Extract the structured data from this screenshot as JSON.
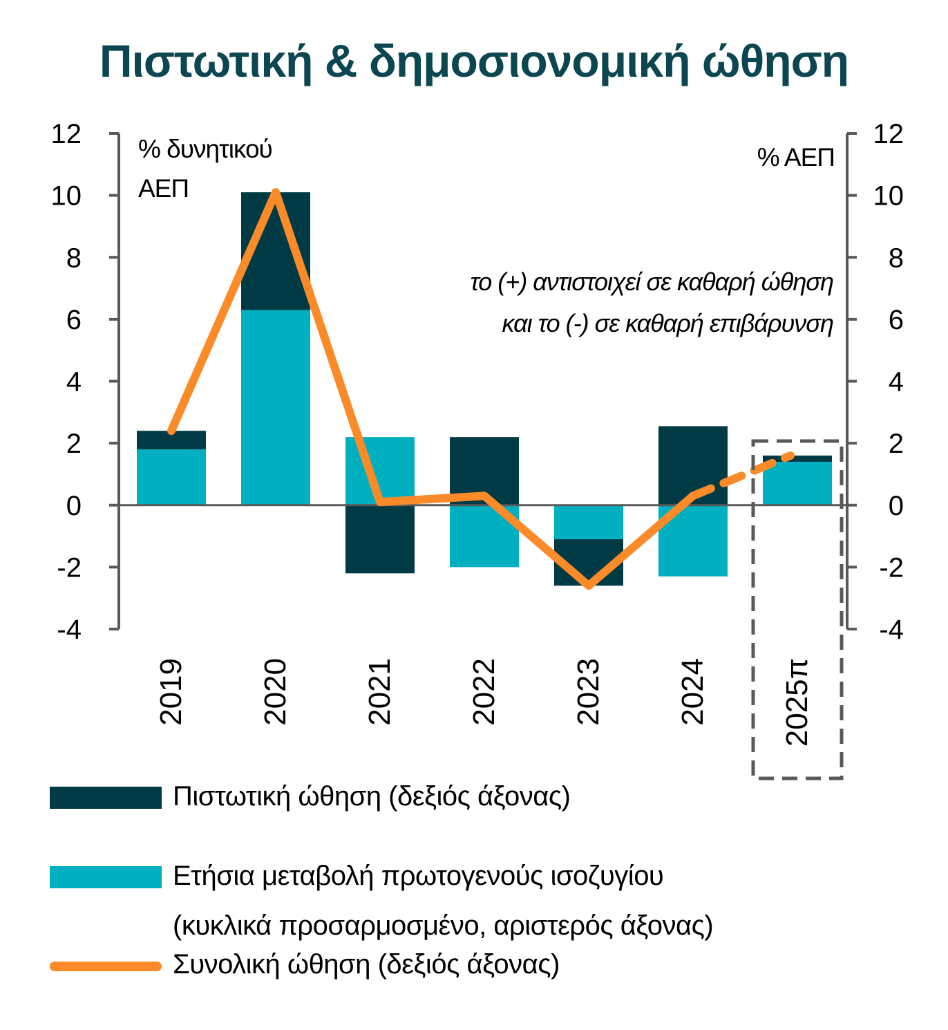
{
  "title": "Πιστωτική & δημοσιονομική ώθηση",
  "colors": {
    "title": "#0c4650",
    "credit": "#003a45",
    "fiscal": "#00afc0",
    "total": "#fb8a28",
    "axis": "#595959",
    "zero_line": "#595959",
    "forecast_box": "#595959"
  },
  "chart_data": {
    "type": "bar",
    "stacked": true,
    "categories": [
      "2019",
      "2020",
      "2021",
      "2022",
      "2023",
      "2024",
      "2025π"
    ],
    "forecast_category": "2025π",
    "series": [
      {
        "name": "Πιστωτική ώθηση (δεξιός άξονας)",
        "kind": "bar",
        "axis": "right",
        "values": [
          0.6,
          3.8,
          -2.2,
          2.2,
          -1.5,
          2.55,
          0.2
        ]
      },
      {
        "name": "Ετήσια μεταβολή πρωτογενούς ισοζυγίου (κυκλικά προσαρμοσμένο, αριστερός άξονας)",
        "kind": "bar",
        "axis": "left",
        "values": [
          1.8,
          6.3,
          2.2,
          -2.0,
          -1.1,
          -2.3,
          1.4
        ]
      },
      {
        "name": "Συνολική ώθηση (δεξιός άξονας)",
        "kind": "line",
        "axis": "right",
        "values": [
          2.4,
          10.1,
          0.1,
          0.3,
          -2.6,
          0.3,
          1.6
        ]
      }
    ],
    "left_axis": {
      "label": "% δυνητικού ΑΕΠ",
      "ylim": [
        -4,
        12
      ],
      "ticks": [
        "12",
        "10",
        "8",
        "6",
        "4",
        "2",
        "0",
        "-2",
        "-4"
      ]
    },
    "right_axis": {
      "label": "% ΑΕΠ",
      "ylim": [
        -4,
        12
      ],
      "ticks": [
        "12",
        "10",
        "8",
        "6",
        "4",
        "2",
        "0",
        "-2",
        "-4"
      ]
    },
    "annotation": [
      "το (+) αντιστοιχεί σε καθαρή ώθηση",
      "και το (-) σε καθαρή επιβάρυνση"
    ],
    "legend_position": "bottom",
    "grid": false
  },
  "legend": {
    "credit_label": "Πιστωτική ώθηση (δεξιός άξονας)",
    "fiscal_label_line1": "Ετήσια μεταβολή πρωτογενούς ισοζυγίου",
    "fiscal_label_line2": "(κυκλικά προσαρμοσμένο, αριστερός άξονας)",
    "total_label": "Συνολική ώθηση (δεξιός άξονας)"
  }
}
